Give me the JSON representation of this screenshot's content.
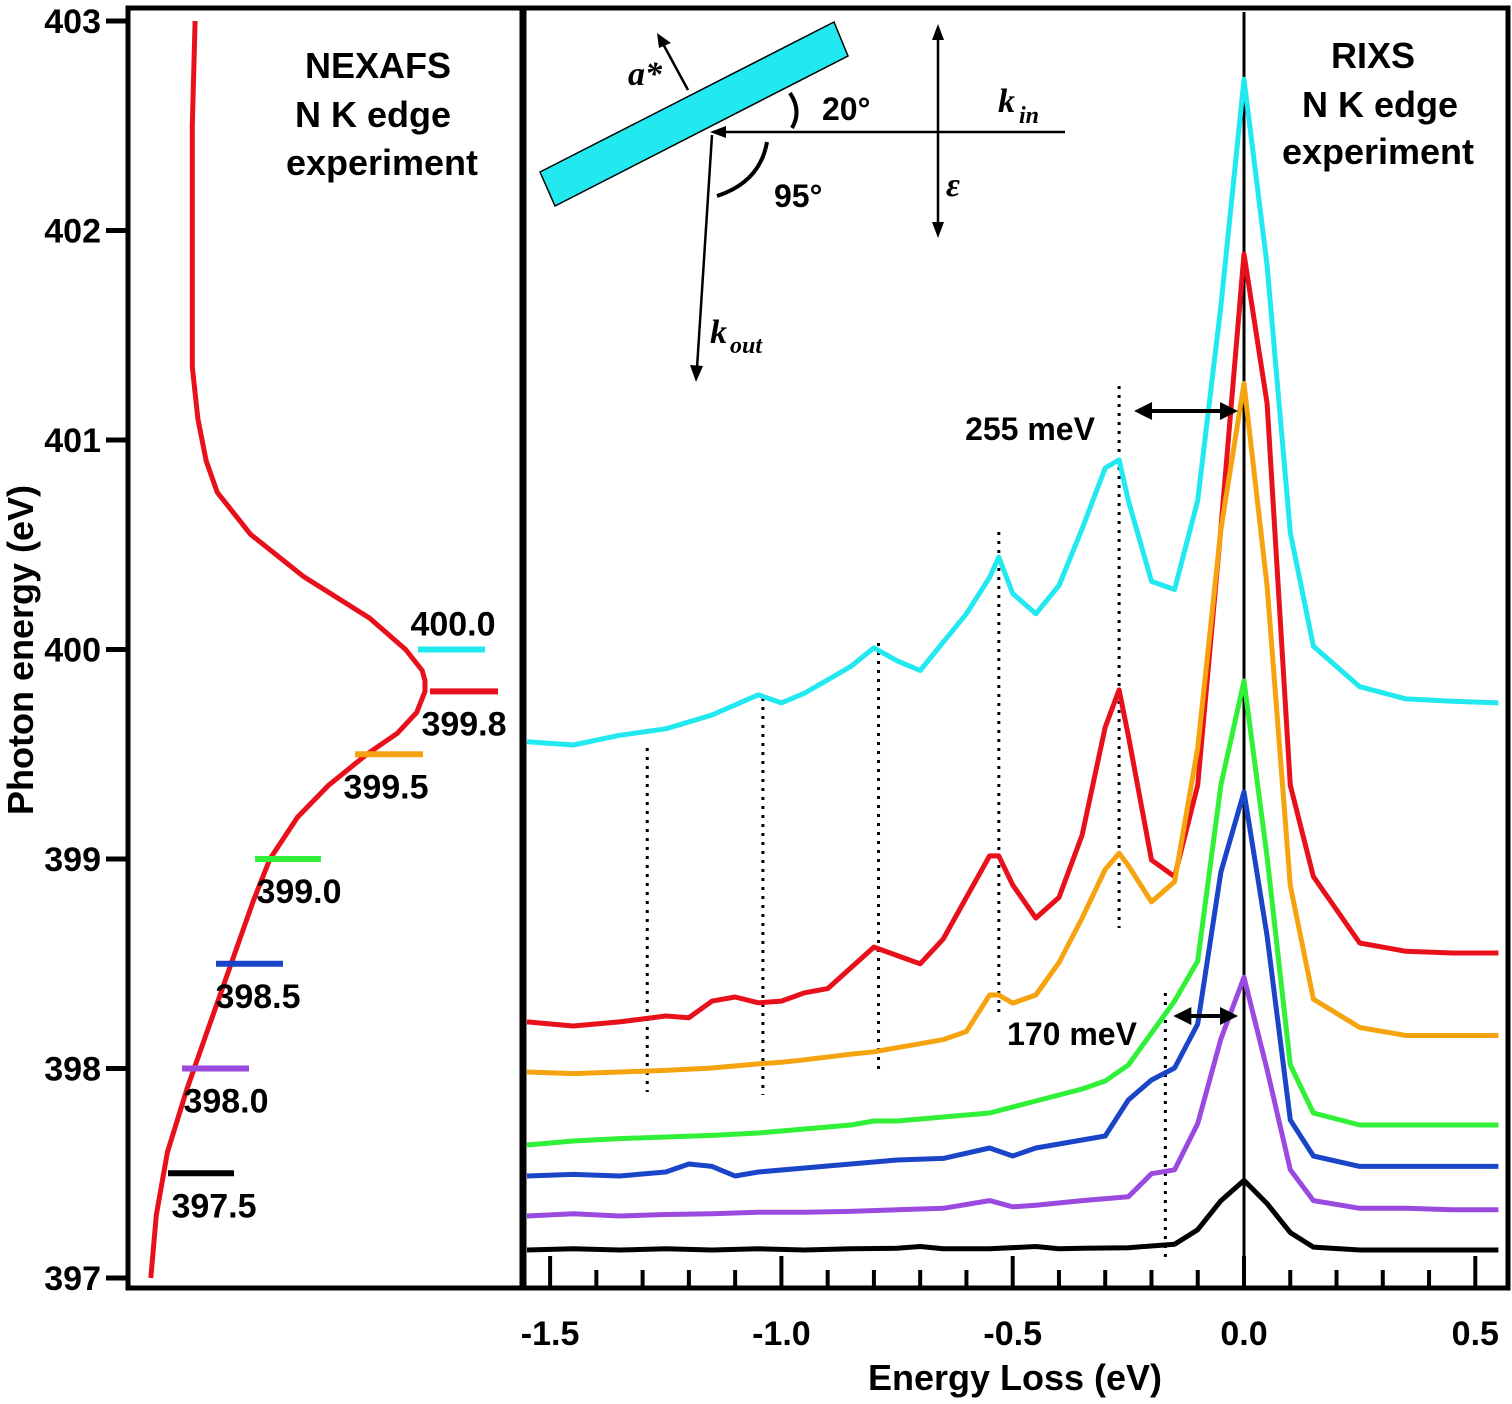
{
  "chart_data": [
    {
      "type": "line",
      "panel": "NEXAFS",
      "title": [
        "NEXAFS",
        "N K edge",
        "experiment"
      ],
      "ylabel": "Photon energy (eV)",
      "ylim": [
        397,
        403
      ],
      "y_ticks": [
        397,
        398,
        399,
        400,
        401,
        402,
        403
      ],
      "y_tick_labels": [
        "397",
        "398",
        "399",
        "400",
        "401",
        "402",
        "403"
      ],
      "xlabel": "",
      "intensity_scale": "arbitrary units (0 = left frame, 1 = peak)",
      "spectrum": {
        "name": "NEXAFS N K edge",
        "color": "#e8101a",
        "energy": [
          397.0,
          397.3,
          397.6,
          397.9,
          398.2,
          398.5,
          398.8,
          399.0,
          399.2,
          399.35,
          399.5,
          399.6,
          399.7,
          399.8,
          399.85,
          399.9,
          400.0,
          400.15,
          400.35,
          400.55,
          400.75,
          400.9,
          401.1,
          401.35,
          401.6,
          402.0,
          402.5,
          403.0
        ],
        "intensity": [
          0.01,
          0.03,
          0.07,
          0.14,
          0.22,
          0.3,
          0.38,
          0.44,
          0.54,
          0.65,
          0.79,
          0.9,
          0.97,
          1.0,
          1.0,
          0.99,
          0.93,
          0.8,
          0.56,
          0.37,
          0.25,
          0.21,
          0.18,
          0.16,
          0.16,
          0.16,
          0.16,
          0.17
        ]
      },
      "excitation_markers": [
        {
          "label": "400.0",
          "energy": 400.0,
          "color": "#22e8f0"
        },
        {
          "label": "399.8",
          "energy": 399.8,
          "color": "#e8101a"
        },
        {
          "label": "399.5",
          "energy": 399.5,
          "color": "#f5a30f"
        },
        {
          "label": "399.0",
          "energy": 399.0,
          "color": "#30f038"
        },
        {
          "label": "398.5",
          "energy": 398.5,
          "color": "#1a45c8"
        },
        {
          "label": "398.0",
          "energy": 398.0,
          "color": "#9b4ae0"
        },
        {
          "label": "397.5",
          "energy": 397.5,
          "color": "#000000"
        }
      ]
    },
    {
      "type": "line",
      "panel": "RIXS",
      "title": [
        "RIXS",
        "N K edge",
        "experiment"
      ],
      "xlabel": "Energy Loss (eV)",
      "xlim": [
        -1.55,
        0.55
      ],
      "x_ticks": [
        -1.5,
        -1.0,
        -0.5,
        0.0,
        0.5
      ],
      "x_tick_labels": [
        "-1.5",
        "-1.0",
        "-0.5",
        "0.0",
        "0.5"
      ],
      "ylabel": "",
      "intensity_scale": "arbitrary units, spectra vertically offset",
      "elastic_line": 0.0,
      "vibrational_marks": [
        -1.29,
        -1.04,
        -0.79,
        -0.53,
        -0.27,
        -0.17
      ],
      "annotations": [
        {
          "text": "255 meV",
          "from": -0.255,
          "to": 0.0
        },
        {
          "text": "170 meV",
          "from": -0.17,
          "to": 0.0
        }
      ],
      "geometry_labels": {
        "a_star": "a*",
        "k_in": "k",
        "k_in_sub": "in",
        "k_out": "k",
        "k_out_sub": "out",
        "polarization": "ε",
        "angle_1": "20°",
        "angle_2": "95°"
      },
      "series": [
        {
          "name": "400.0",
          "color": "#22e8f0",
          "x": [
            -1.55,
            -1.45,
            -1.35,
            -1.25,
            -1.15,
            -1.05,
            -1.0,
            -0.95,
            -0.85,
            -0.8,
            -0.75,
            -0.7,
            -0.65,
            -0.6,
            -0.55,
            -0.53,
            -0.5,
            -0.45,
            -0.4,
            -0.35,
            -0.3,
            -0.27,
            -0.25,
            -0.2,
            -0.15,
            -0.1,
            -0.05,
            0.0,
            0.05,
            0.1,
            0.15,
            0.25,
            0.35,
            0.45,
            0.55
          ],
          "y": [
            0.62,
            0.58,
            0.7,
            0.78,
            0.95,
            1.2,
            1.1,
            1.22,
            1.55,
            1.78,
            1.62,
            1.5,
            1.85,
            2.2,
            2.65,
            2.9,
            2.45,
            2.2,
            2.55,
            3.25,
            4.0,
            4.1,
            3.6,
            2.6,
            2.5,
            3.6,
            6.0,
            8.8,
            6.5,
            3.2,
            1.8,
            1.3,
            1.15,
            1.12,
            1.1
          ]
        },
        {
          "name": "399.8",
          "color": "#e8101a",
          "x": [
            -1.55,
            -1.45,
            -1.35,
            -1.25,
            -1.2,
            -1.15,
            -1.1,
            -1.05,
            -1.0,
            -0.95,
            -0.9,
            -0.85,
            -0.8,
            -0.75,
            -0.7,
            -0.65,
            -0.6,
            -0.55,
            -0.53,
            -0.5,
            -0.45,
            -0.4,
            -0.35,
            -0.3,
            -0.27,
            -0.25,
            -0.2,
            -0.15,
            -0.1,
            -0.05,
            0.0,
            0.05,
            0.1,
            0.15,
            0.25,
            0.35,
            0.45,
            0.55
          ],
          "y": [
            0.05,
            0.0,
            0.05,
            0.12,
            0.1,
            0.3,
            0.35,
            0.28,
            0.3,
            0.4,
            0.45,
            0.7,
            0.95,
            0.85,
            0.75,
            1.05,
            1.55,
            2.05,
            2.05,
            1.7,
            1.3,
            1.55,
            2.3,
            3.6,
            4.05,
            3.5,
            2.0,
            1.8,
            2.9,
            6.0,
            9.3,
            7.5,
            2.9,
            1.8,
            1.0,
            0.9,
            0.88,
            0.88
          ]
        },
        {
          "name": "399.5",
          "color": "#f5a30f",
          "x": [
            -1.55,
            -1.45,
            -1.35,
            -1.25,
            -1.15,
            -1.05,
            -1.0,
            -0.95,
            -0.85,
            -0.8,
            -0.75,
            -0.7,
            -0.65,
            -0.6,
            -0.55,
            -0.53,
            -0.5,
            -0.45,
            -0.4,
            -0.35,
            -0.3,
            -0.27,
            -0.25,
            -0.2,
            -0.15,
            -0.1,
            -0.05,
            0.0,
            0.05,
            0.1,
            0.15,
            0.25,
            0.35,
            0.45,
            0.55
          ],
          "y": [
            0.0,
            -0.02,
            0.0,
            0.02,
            0.05,
            0.1,
            0.12,
            0.15,
            0.22,
            0.25,
            0.3,
            0.35,
            0.4,
            0.5,
            0.95,
            0.95,
            0.85,
            0.95,
            1.35,
            1.9,
            2.5,
            2.7,
            2.55,
            2.1,
            2.35,
            4.0,
            6.7,
            8.5,
            6.0,
            2.3,
            0.9,
            0.55,
            0.45,
            0.45,
            0.45
          ]
        },
        {
          "name": "399.0",
          "color": "#30f038",
          "x": [
            -1.55,
            -1.45,
            -1.35,
            -1.25,
            -1.15,
            -1.05,
            -0.95,
            -0.85,
            -0.8,
            -0.75,
            -0.65,
            -0.55,
            -0.45,
            -0.35,
            -0.3,
            -0.25,
            -0.2,
            -0.15,
            -0.1,
            -0.05,
            0.0,
            0.05,
            0.1,
            0.15,
            0.25,
            0.35,
            0.45,
            0.55
          ],
          "y": [
            0.0,
            0.05,
            0.08,
            0.1,
            0.12,
            0.15,
            0.2,
            0.25,
            0.3,
            0.3,
            0.35,
            0.4,
            0.55,
            0.7,
            0.8,
            1.0,
            1.4,
            1.8,
            2.3,
            4.5,
            5.8,
            3.6,
            1.0,
            0.4,
            0.25,
            0.25,
            0.25,
            0.25
          ]
        },
        {
          "name": "398.5",
          "color": "#1a45c8",
          "x": [
            -1.55,
            -1.45,
            -1.35,
            -1.25,
            -1.2,
            -1.15,
            -1.1,
            -1.05,
            -0.95,
            -0.85,
            -0.75,
            -0.65,
            -0.55,
            -0.5,
            -0.45,
            -0.4,
            -0.3,
            -0.25,
            -0.2,
            -0.15,
            -0.1,
            -0.05,
            0.0,
            0.05,
            0.1,
            0.15,
            0.25,
            0.35,
            0.45,
            0.55
          ],
          "y": [
            0.0,
            0.02,
            0.0,
            0.05,
            0.15,
            0.12,
            0.0,
            0.05,
            0.1,
            0.15,
            0.2,
            0.22,
            0.35,
            0.25,
            0.35,
            0.4,
            0.5,
            0.95,
            1.2,
            1.35,
            1.9,
            3.8,
            4.8,
            3.0,
            0.7,
            0.25,
            0.12,
            0.12,
            0.12,
            0.12
          ]
        },
        {
          "name": "398.0",
          "color": "#9b4ae0",
          "x": [
            -1.55,
            -1.45,
            -1.35,
            -1.25,
            -1.15,
            -1.05,
            -0.95,
            -0.85,
            -0.75,
            -0.65,
            -0.55,
            -0.5,
            -0.45,
            -0.35,
            -0.25,
            -0.2,
            -0.15,
            -0.1,
            -0.05,
            0.0,
            0.05,
            0.1,
            0.15,
            0.25,
            0.35,
            0.45,
            0.55
          ],
          "y": [
            0.0,
            0.03,
            0.0,
            0.02,
            0.03,
            0.05,
            0.05,
            0.06,
            0.08,
            0.1,
            0.2,
            0.12,
            0.14,
            0.2,
            0.25,
            0.55,
            0.6,
            1.2,
            2.3,
            3.1,
            1.9,
            0.6,
            0.2,
            0.1,
            0.1,
            0.08,
            0.08
          ]
        },
        {
          "name": "397.5",
          "color": "#000000",
          "x": [
            -1.55,
            -1.45,
            -1.35,
            -1.25,
            -1.15,
            -1.05,
            -0.95,
            -0.85,
            -0.75,
            -0.7,
            -0.65,
            -0.55,
            -0.45,
            -0.4,
            -0.35,
            -0.25,
            -0.15,
            -0.1,
            -0.05,
            0.0,
            0.05,
            0.1,
            0.15,
            0.25,
            0.35,
            0.45,
            0.55
          ],
          "y": [
            0.0,
            0.02,
            0.0,
            0.02,
            0.0,
            0.02,
            0.0,
            0.02,
            0.03,
            0.06,
            0.02,
            0.02,
            0.06,
            0.02,
            0.03,
            0.04,
            0.1,
            0.35,
            0.85,
            1.2,
            0.8,
            0.3,
            0.05,
            0.0,
            0.0,
            0.0,
            0.0
          ]
        }
      ]
    }
  ]
}
